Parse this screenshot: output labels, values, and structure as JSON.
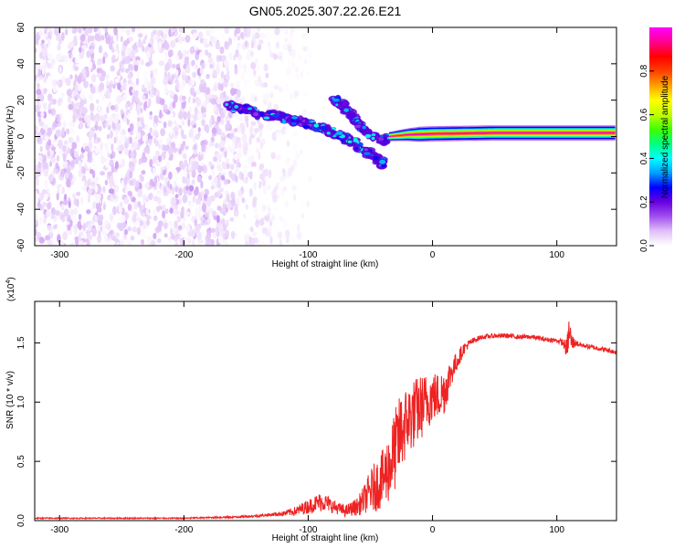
{
  "figure_title": "GN05.2025.307.22.26.E21",
  "chart_data": [
    {
      "type": "heatmap",
      "xlabel": "Height of straight line (km)",
      "ylabel": "Frequency (Hz)",
      "xlim": [
        -320,
        148
      ],
      "ylim": [
        -60,
        60
      ],
      "xticks": [
        -300,
        -200,
        -100,
        0,
        100
      ],
      "xtick_labels": [
        "-300",
        "-200",
        "-100",
        "0",
        "100"
      ],
      "yticks": [
        -60,
        -40,
        -20,
        0,
        20,
        40,
        60
      ],
      "ytick_labels": [
        "-60",
        "-40",
        "-20",
        "0",
        "20",
        "40",
        "60"
      ],
      "colorbar": {
        "label": "Normalized spectral amplitude",
        "range": [
          0,
          1
        ],
        "ticks": [
          0.0,
          0.2,
          0.4,
          0.6,
          0.8
        ],
        "tick_labels": [
          "0.0",
          "0.2",
          "0.4",
          "0.6",
          "0.8"
        ],
        "colormap": [
          "#ffffff",
          "#e0c0f8",
          "#a050f0",
          "#6a00e0",
          "#0000ff",
          "#00a0ff",
          "#00ffff",
          "#00ff80",
          "#40ff00",
          "#c0ff00",
          "#ffff00",
          "#ffa000",
          "#ff4000",
          "#ff0000",
          "#ff0090",
          "#ff00ff"
        ]
      },
      "regions": [
        {
          "name": "noise",
          "x_range": [
            -320,
            -130
          ],
          "y_range": [
            -60,
            60
          ],
          "amplitude_range": [
            0.0,
            0.08
          ]
        },
        {
          "name": "upper-branch",
          "points": [
            [
              -165,
              17
            ],
            [
              -150,
              15
            ],
            [
              -135,
              12
            ],
            [
              -120,
              10
            ],
            [
              -105,
              8
            ],
            [
              -95,
              6
            ],
            [
              -85,
              4
            ],
            [
              -75,
              1
            ],
            [
              -65,
              -3
            ],
            [
              -55,
              -8
            ],
            [
              -45,
              -12
            ],
            [
              -40,
              -15
            ]
          ],
          "amplitude": 0.3
        },
        {
          "name": "second-branch",
          "points": [
            [
              -78,
              20
            ],
            [
              -72,
              17
            ],
            [
              -65,
              12
            ],
            [
              -58,
              6
            ],
            [
              -50,
              1
            ],
            [
              -42,
              -2
            ],
            [
              -35,
              -1
            ]
          ],
          "amplitude": 0.3
        },
        {
          "name": "main-line",
          "points": [
            [
              -35,
              0
            ],
            [
              -20,
              1
            ],
            [
              0,
              1.5
            ],
            [
              50,
              2
            ],
            [
              100,
              2
            ],
            [
              148,
              2
            ]
          ],
          "amplitude": 0.95
        }
      ]
    },
    {
      "type": "line",
      "xlabel": "Height of straight line (km)",
      "ylabel": "SNR (10 * v/v)",
      "exponent_label": "(x10",
      "exponent_power": "4",
      "exponent_close": ")",
      "xlim": [
        -320,
        148
      ],
      "ylim": [
        0,
        1.85
      ],
      "xticks": [
        -300,
        -200,
        -100,
        0,
        100
      ],
      "xtick_labels": [
        "-300",
        "-200",
        "-100",
        "0",
        "100"
      ],
      "yticks": [
        0.0,
        0.5,
        1.0,
        1.5
      ],
      "ytick_labels": [
        "0.0",
        "0.5",
        "1.0",
        "1.5"
      ],
      "line_color": "#ee2222",
      "series": [
        {
          "name": "SNR",
          "x": [
            -320,
            -300,
            -280,
            -260,
            -240,
            -220,
            -200,
            -180,
            -160,
            -140,
            -130,
            -120,
            -110,
            -100,
            -95,
            -90,
            -85,
            -80,
            -75,
            -70,
            -65,
            -60,
            -55,
            -50,
            -45,
            -40,
            -35,
            -30,
            -25,
            -20,
            -15,
            -10,
            -5,
            0,
            5,
            10,
            15,
            20,
            25,
            30,
            35,
            40,
            50,
            60,
            70,
            80,
            90,
            100,
            105,
            108,
            110,
            112,
            115,
            120,
            130,
            140,
            148
          ],
          "y": [
            0.02,
            0.02,
            0.02,
            0.02,
            0.02,
            0.02,
            0.02,
            0.025,
            0.03,
            0.04,
            0.05,
            0.06,
            0.08,
            0.12,
            0.14,
            0.16,
            0.15,
            0.12,
            0.1,
            0.08,
            0.1,
            0.12,
            0.18,
            0.25,
            0.3,
            0.35,
            0.45,
            0.6,
            0.75,
            0.85,
            0.9,
            0.95,
            1.0,
            1.05,
            1.05,
            1.1,
            1.25,
            1.35,
            1.45,
            1.5,
            1.53,
            1.55,
            1.56,
            1.56,
            1.55,
            1.55,
            1.53,
            1.52,
            1.5,
            1.45,
            1.6,
            1.5,
            1.5,
            1.48,
            1.46,
            1.44,
            1.42
          ],
          "noise_amplitude": [
            0.005,
            0.005,
            0.005,
            0.005,
            0.005,
            0.005,
            0.005,
            0.006,
            0.008,
            0.01,
            0.015,
            0.02,
            0.04,
            0.06,
            0.07,
            0.08,
            0.07,
            0.06,
            0.05,
            0.05,
            0.06,
            0.08,
            0.12,
            0.18,
            0.22,
            0.25,
            0.3,
            0.35,
            0.35,
            0.3,
            0.3,
            0.28,
            0.25,
            0.22,
            0.2,
            0.2,
            0.12,
            0.08,
            0.05,
            0.03,
            0.025,
            0.02,
            0.02,
            0.02,
            0.02,
            0.02,
            0.02,
            0.02,
            0.03,
            0.08,
            0.15,
            0.08,
            0.03,
            0.02,
            0.02,
            0.02,
            0.02
          ]
        }
      ]
    }
  ]
}
